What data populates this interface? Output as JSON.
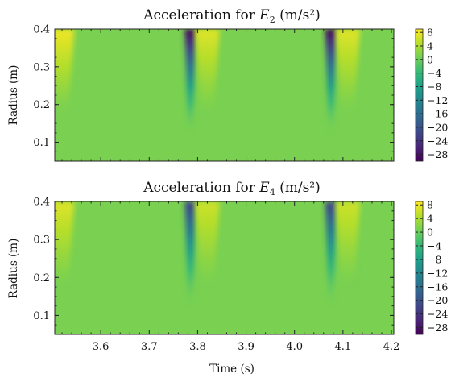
{
  "chart_data": [
    {
      "type": "heatmap",
      "title_main": "Acceleration for ",
      "title_var": "E",
      "title_sub": "2",
      "title_unit": " (m/s²)",
      "xlabel": "",
      "ylabel": "Radius (m)",
      "xlim": [
        3.505,
        4.205
      ],
      "ylim": [
        0.05,
        0.4
      ],
      "x_ticks": [],
      "y_ticks": [
        "0.1",
        "0.2",
        "0.3",
        "0.4"
      ],
      "colorbar_range": [
        -30,
        9
      ],
      "colorbar_ticks": [
        "8",
        "4",
        "0",
        "−4",
        "−8",
        "−12",
        "−16",
        "−20",
        "−24",
        "−28"
      ],
      "colormap": "viridis",
      "features": [
        {
          "kind": "trough",
          "x": 3.785,
          "min_value": -29
        },
        {
          "kind": "trough",
          "x": 4.075,
          "min_value": -29
        },
        {
          "kind": "peak",
          "x": 3.52,
          "max_value": 8
        },
        {
          "kind": "peak",
          "x": 3.82,
          "max_value": 7
        },
        {
          "kind": "peak",
          "x": 4.11,
          "max_value": 7
        }
      ]
    },
    {
      "type": "heatmap",
      "title_main": "Acceleration for ",
      "title_var": "E",
      "title_sub": "4",
      "title_unit": " (m/s²)",
      "xlabel": "Time (s)",
      "ylabel": "Radius (m)",
      "xlim": [
        3.505,
        4.205
      ],
      "ylim": [
        0.05,
        0.4
      ],
      "x_ticks": [
        "3.6",
        "3.7",
        "3.8",
        "3.9",
        "4.0",
        "4.1",
        "4.2"
      ],
      "y_ticks": [
        "0.1",
        "0.2",
        "0.3",
        "0.4"
      ],
      "colorbar_range": [
        -30,
        9
      ],
      "colorbar_ticks": [
        "8",
        "4",
        "0",
        "−4",
        "−8",
        "−12",
        "−16",
        "−20",
        "−24",
        "−28"
      ],
      "colormap": "viridis",
      "features": [
        {
          "kind": "trough",
          "x": 3.785,
          "min_value": -22
        },
        {
          "kind": "trough",
          "x": 4.075,
          "min_value": -22
        },
        {
          "kind": "peak",
          "x": 3.52,
          "max_value": 7
        },
        {
          "kind": "peak",
          "x": 3.82,
          "max_value": 6
        },
        {
          "kind": "peak",
          "x": 4.11,
          "max_value": 6
        }
      ]
    }
  ]
}
